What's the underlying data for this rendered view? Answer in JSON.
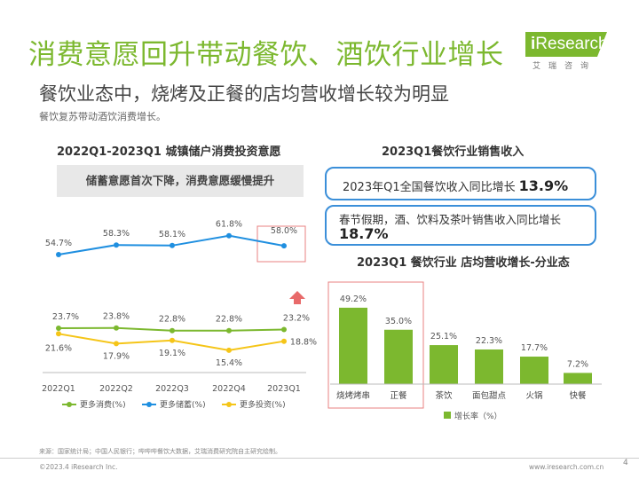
{
  "header": {
    "title": "消费意愿回升带动餐饮、酒饮行业增长",
    "subtitle": "餐饮业态中，烧烤及正餐的店均营收增长较为明显",
    "intro": "餐饮复苏带动酒饮消费增长。"
  },
  "logo": {
    "i": "i",
    "name": "Research",
    "sub": "艾瑞咨询"
  },
  "left_panel": {
    "title": "2022Q1-2023Q1 城镇储户消费投资意愿",
    "note": "储蓄意愿首次下降，消费意愿缓慢提升"
  },
  "right_panel": {
    "title": "2023Q1餐饮行业销售收入",
    "stat1_text": "2023年Q1全国餐饮收入同比增长",
    "stat1_value": "13.9%",
    "stat2_text": "春节假期，酒、饮料及茶叶销售收入同比增长",
    "stat2_value": "18.7%",
    "bar_title": "2023Q1 餐饮行业 店均营收增长-分业态"
  },
  "chart_data": [
    {
      "type": "line",
      "x": [
        "2022Q1",
        "2022Q2",
        "2022Q3",
        "2022Q4",
        "2023Q1"
      ],
      "series": [
        {
          "name": "更多消费(%)",
          "values": [
            23.7,
            23.8,
            22.8,
            22.8,
            23.2
          ],
          "labels": [
            "23.7%",
            "23.8%",
            "22.8%",
            "22.8%",
            "23.2%"
          ],
          "color": "#7cb82f"
        },
        {
          "name": "更多储蓄(%)",
          "values": [
            54.7,
            58.3,
            58.1,
            61.8,
            58.0
          ],
          "labels": [
            "54.7%",
            "58.3%",
            "58.1%",
            "61.8%",
            "58.0%"
          ],
          "color": "#1f8fe0"
        },
        {
          "name": "更多投资(%)",
          "values": [
            21.6,
            17.9,
            19.1,
            15.4,
            18.8
          ],
          "labels": [
            "21.6%",
            "17.9%",
            "19.1%",
            "15.4%",
            "18.8%"
          ],
          "color": "#f5c518"
        }
      ],
      "grid": false,
      "legend": "bottom"
    },
    {
      "type": "bar",
      "categories": [
        "烧烤烤串",
        "正餐",
        "茶饮",
        "面包甜点",
        "火锅",
        "快餐"
      ],
      "values": [
        49.2,
        35.0,
        25.1,
        22.3,
        17.7,
        7.2
      ],
      "labels": [
        "49.2%",
        "35.0%",
        "25.1%",
        "22.3%",
        "17.7%",
        "7.2%"
      ],
      "series_name": "增长率（%）",
      "color": "#7cb82f",
      "legend": "bottom-left"
    }
  ],
  "footer": {
    "source": "来源：国家统计局；中国人民银行；哔哔哔餐饮大数据，艾瑞消费研究院自主研究绘制。",
    "copyright": "©2023.4 iResearch Inc.",
    "url": "www.iresearch.com.cn",
    "page": "4"
  }
}
